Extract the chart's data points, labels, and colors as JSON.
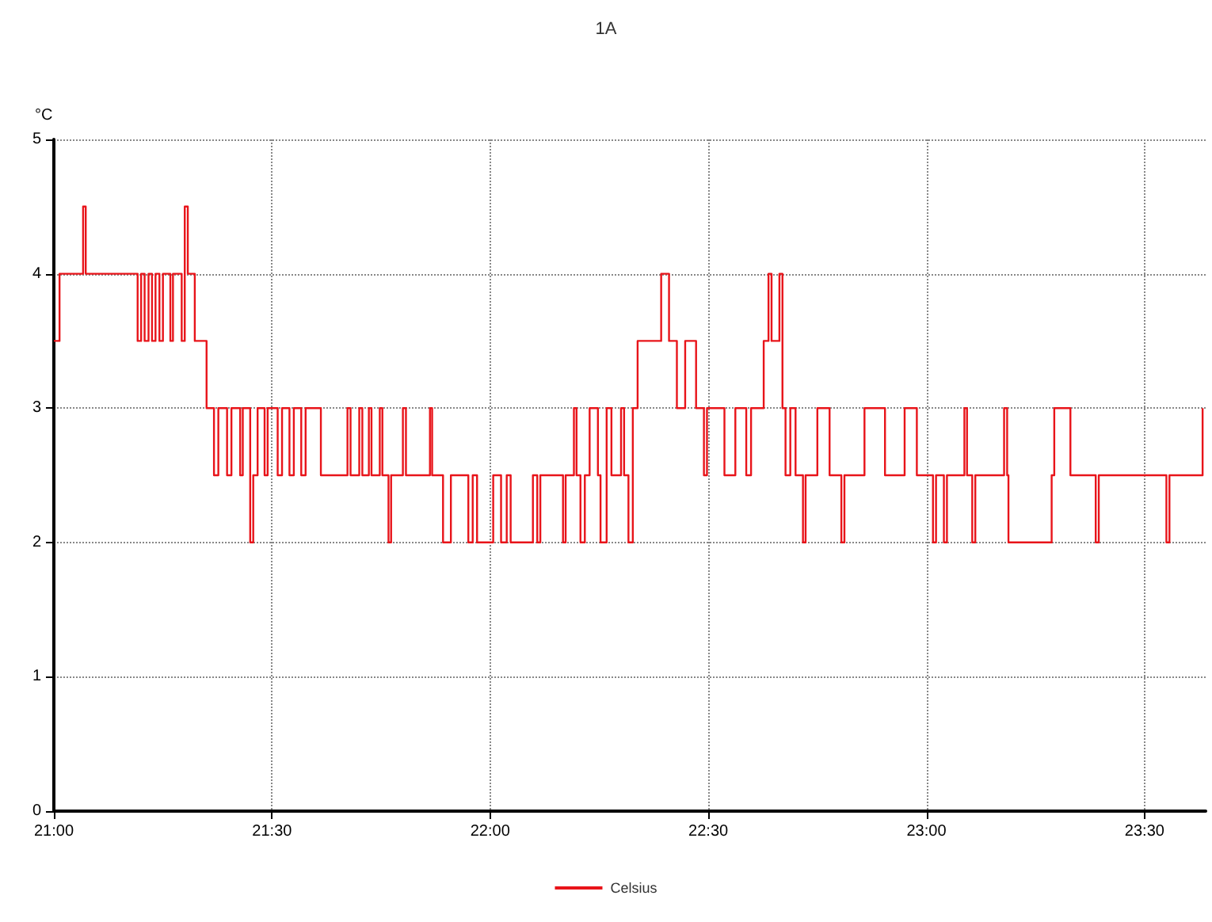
{
  "chart_data": {
    "type": "step",
    "title": "1A",
    "ylabel": "°C",
    "legend": "bottom",
    "grid": true,
    "marker": "none",
    "xlim": [
      21,
      23.64
    ],
    "xticks": [
      {
        "value": 21,
        "label": "21:00"
      },
      {
        "value": 21.5,
        "label": "21:30"
      },
      {
        "value": 22,
        "label": "22:00"
      },
      {
        "value": 22.5,
        "label": "22:30"
      },
      {
        "value": 23,
        "label": "23:00"
      },
      {
        "value": 23.5,
        "label": "23:30"
      }
    ],
    "ylim": [
      0,
      5
    ],
    "yticks": [
      0,
      1,
      2,
      3,
      4,
      5
    ],
    "series": [
      {
        "name": "Celsius",
        "color": "#e8141a",
        "x": [
          21,
          21.013,
          21.067,
          21.073,
          21.192,
          21.2,
          21.208,
          21.217,
          21.225,
          21.233,
          21.242,
          21.25,
          21.267,
          21.273,
          21.293,
          21.3,
          21.307,
          21.323,
          21.35,
          21.367,
          21.377,
          21.397,
          21.407,
          21.427,
          21.433,
          21.45,
          21.457,
          21.467,
          21.483,
          21.49,
          21.513,
          21.523,
          21.54,
          21.55,
          21.567,
          21.577,
          21.612,
          21.673,
          21.68,
          21.7,
          21.707,
          21.722,
          21.728,
          21.747,
          21.753,
          21.767,
          21.773,
          21.8,
          21.807,
          21.862,
          21.867,
          21.892,
          21.91,
          21.95,
          21.96,
          21.97,
          22.007,
          22.025,
          22.038,
          22.047,
          22.098,
          22.108,
          22.115,
          22.167,
          22.173,
          22.192,
          22.198,
          22.207,
          22.217,
          22.228,
          22.247,
          22.253,
          22.267,
          22.278,
          22.3,
          22.307,
          22.317,
          22.327,
          22.338,
          22.392,
          22.41,
          22.428,
          22.447,
          22.472,
          22.49,
          22.497,
          22.537,
          22.562,
          22.587,
          22.598,
          22.627,
          22.638,
          22.645,
          22.663,
          22.67,
          22.677,
          22.688,
          22.7,
          22.717,
          22.723,
          22.75,
          22.778,
          22.805,
          22.812,
          22.858,
          22.905,
          22.95,
          22.978,
          23.015,
          23.022,
          23.04,
          23.047,
          23.087,
          23.093,
          23.105,
          23.112,
          23.178,
          23.185,
          23.188,
          23.287,
          23.293,
          23.33,
          23.388,
          23.395,
          23.55,
          23.557,
          23.633
        ],
        "values": [
          3.5,
          4,
          4.5,
          4,
          3.5,
          4,
          3.5,
          4,
          3.5,
          4,
          3.5,
          4,
          3.5,
          4,
          3.5,
          4.5,
          4,
          3.5,
          3,
          2.5,
          3,
          2.5,
          3,
          2.5,
          3,
          2,
          2.5,
          3,
          2.5,
          3,
          2.5,
          3,
          2.5,
          3,
          2.5,
          3,
          2.5,
          3,
          2.5,
          3,
          2.5,
          3,
          2.5,
          3,
          2.5,
          2,
          2.5,
          3,
          2.5,
          3,
          2.5,
          2,
          2.5,
          2,
          2.5,
          2,
          2.5,
          2,
          2.5,
          2,
          2.5,
          2,
          2.5,
          2,
          2.5,
          3,
          2.5,
          2,
          2.5,
          3,
          2.5,
          2,
          3,
          2.5,
          3,
          2.5,
          2,
          3,
          3.5,
          4,
          3.5,
          3,
          3.5,
          3,
          2.5,
          3,
          2.5,
          3,
          2.5,
          3,
          3.5,
          4,
          3.5,
          4,
          3,
          2.5,
          3,
          2.5,
          2,
          2.5,
          3,
          2.5,
          2,
          2.5,
          3,
          2.5,
          3,
          2.5,
          2,
          2.5,
          2,
          2.5,
          3,
          2.5,
          2,
          2.5,
          3,
          2.5,
          2,
          2.5,
          3,
          2.5,
          2,
          2.5,
          2,
          2.5,
          3
        ]
      }
    ]
  }
}
